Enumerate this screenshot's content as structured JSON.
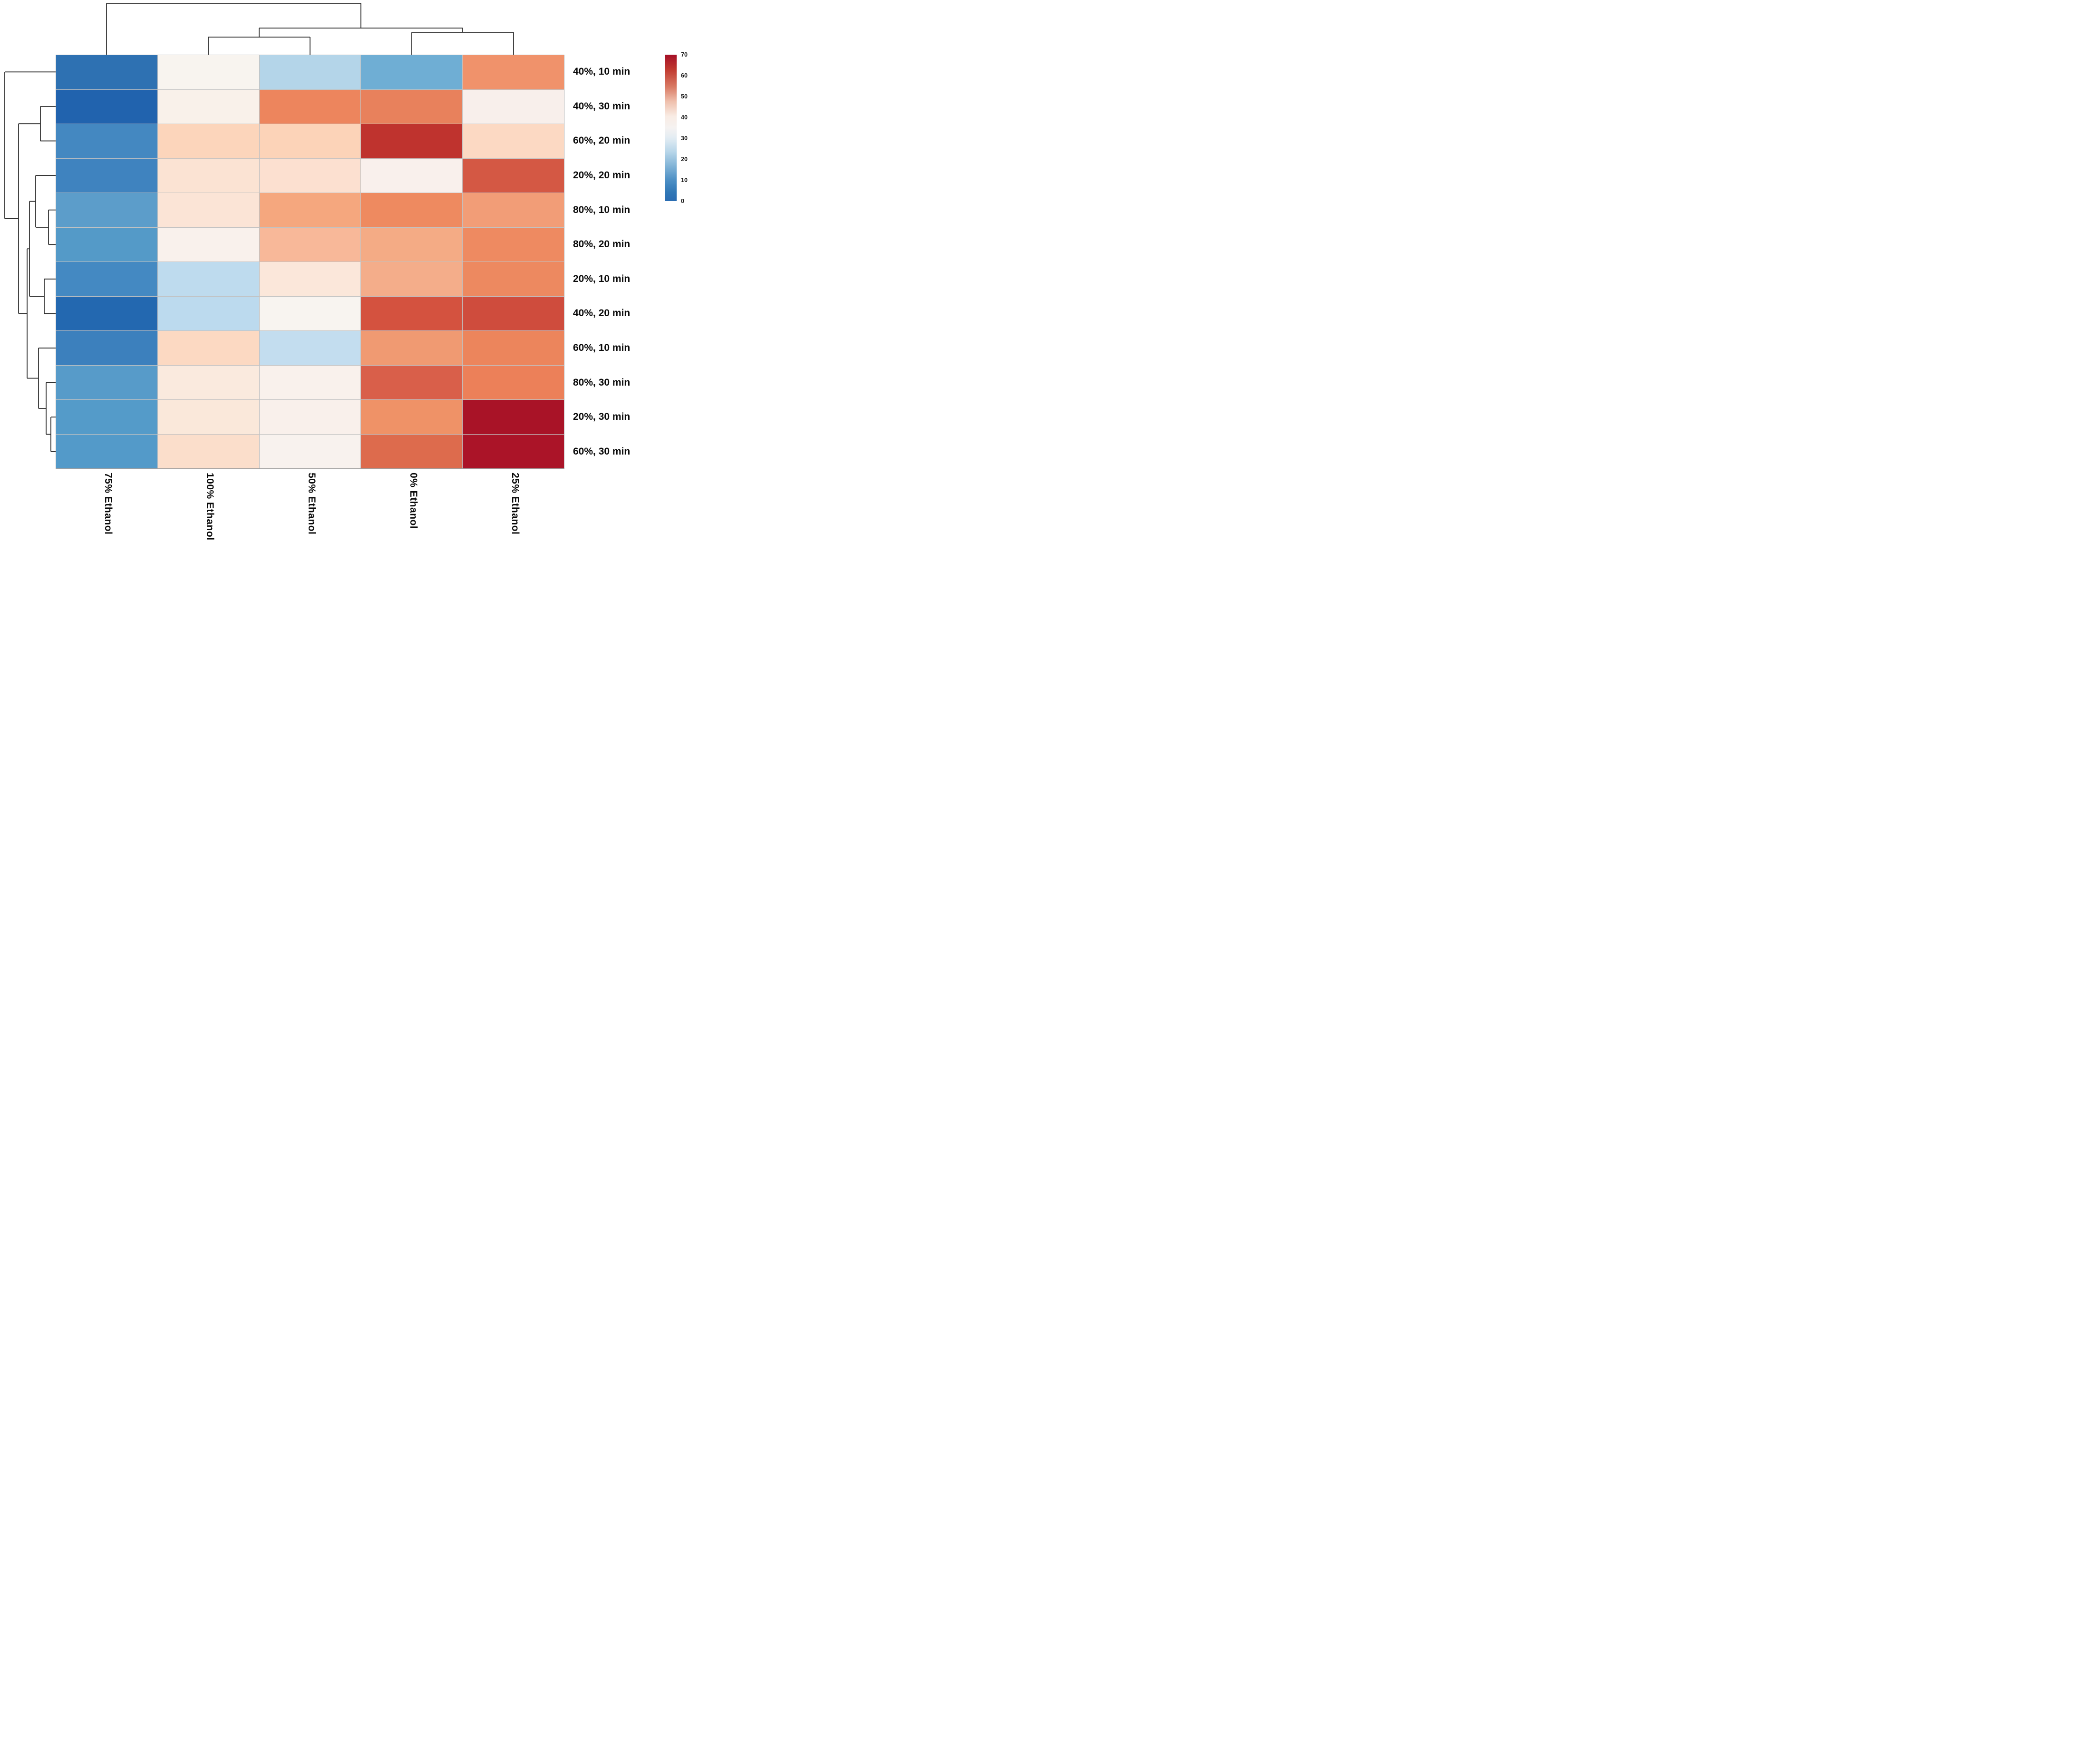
{
  "figure": {
    "kind": "clustered-heatmap",
    "background": "#ffffff",
    "dendrogram_line_color": "#2d2d2d",
    "grid_line_color": "#c2c2c2"
  },
  "chart_data": {
    "type": "heatmap",
    "title": "",
    "xlabel": "",
    "ylabel": "",
    "rows": [
      "40%, 10 min",
      "40%, 30 min",
      "60%, 20 min",
      "20%, 20 min",
      "80%, 10 min",
      "80%, 20 min",
      "20%, 10 min",
      "40%, 20 min",
      "60%, 10 min",
      "80%, 30 min",
      "20%, 30 min",
      "60%, 30 min"
    ],
    "columns": [
      "75% Ethanol",
      "100% Ethanol",
      "50% Ethanol",
      "0% Ethanol",
      "25% Ethanol"
    ],
    "values_estimated": [
      [
        6,
        37,
        21,
        16,
        51
      ],
      [
        3,
        38,
        54,
        54,
        38
      ],
      [
        9,
        44,
        44,
        64,
        43
      ],
      [
        8,
        42,
        42,
        38,
        59
      ],
      [
        13,
        42,
        48,
        53,
        50
      ],
      [
        12,
        38,
        46,
        48,
        53
      ],
      [
        9,
        22,
        41,
        48,
        53
      ],
      [
        4,
        22,
        37,
        60,
        61
      ],
      [
        8,
        43,
        23,
        50,
        54
      ],
      [
        12,
        40,
        38,
        58,
        55
      ],
      [
        12,
        40,
        38,
        51,
        69
      ],
      [
        12,
        42,
        37,
        56,
        69
      ]
    ],
    "cell_colors": [
      [
        "#2e71b2",
        "#f8f4ef",
        "#b4d5e9",
        "#6faed4",
        "#f0926b"
      ],
      [
        "#2163ae",
        "#f9f1ea",
        "#ed855d",
        "#e8815c",
        "#f8efeb"
      ],
      [
        "#4488c1",
        "#fcd5bb",
        "#fcd3b8",
        "#bf332e",
        "#fcd9c3"
      ],
      [
        "#3f83bf",
        "#fbe3d3",
        "#fce0d0",
        "#f9f0ec",
        "#d45844"
      ],
      [
        "#5c9dca",
        "#fbe4d6",
        "#f5a77e",
        "#ee8a60",
        "#f29d77"
      ],
      [
        "#549ac8",
        "#f9f1ec",
        "#f8b899",
        "#f4ab85",
        "#ee8a61"
      ],
      [
        "#4489c2",
        "#bedbee",
        "#fbe7da",
        "#f4ad8a",
        "#ed8960"
      ],
      [
        "#2368b0",
        "#bcdaee",
        "#f8f4f0",
        "#d4523f",
        "#cf4c3d"
      ],
      [
        "#3c80bd",
        "#fcd9c2",
        "#c3ddef",
        "#f09a72",
        "#ec855c"
      ],
      [
        "#579bc9",
        "#faeade",
        "#f9f1ec",
        "#d95f4a",
        "#ec8059"
      ],
      [
        "#549bc9",
        "#fae8da",
        "#f9f0eb",
        "#ef9267",
        "#a91327"
      ],
      [
        "#539ac9",
        "#fbdecb",
        "#f8f2ee",
        "#dd6b4d",
        "#ab1428"
      ]
    ],
    "colorbar": {
      "min": 0,
      "max": 70,
      "ticks": [
        "70",
        "60",
        "50",
        "40",
        "30",
        "20",
        "10",
        "0"
      ],
      "gradient_top_to_bottom": [
        {
          "pos": 0,
          "color": "#a50f27"
        },
        {
          "pos": 10,
          "color": "#c0392f"
        },
        {
          "pos": 22,
          "color": "#d97a64"
        },
        {
          "pos": 32,
          "color": "#efc0ad"
        },
        {
          "pos": 42,
          "color": "#f9ece4"
        },
        {
          "pos": 50,
          "color": "#f5f2f1"
        },
        {
          "pos": 57,
          "color": "#e2ecf3"
        },
        {
          "pos": 66,
          "color": "#b9d7ea"
        },
        {
          "pos": 76,
          "color": "#82b4d7"
        },
        {
          "pos": 86,
          "color": "#4b8ec4"
        },
        {
          "pos": 94,
          "color": "#3077b6"
        },
        {
          "pos": 100,
          "color": "#2a6cb2"
        }
      ]
    },
    "row_dendrogram": {
      "depth": 107,
      "children": [
        0,
        {
          "depth": 78,
          "children": [
            {
              "depth": 32,
              "children": [
                1,
                2
              ]
            },
            {
              "depth": 60,
              "children": [
                {
                  "depth": 55,
                  "children": [
                    {
                      "depth": 42,
                      "children": [
                        3,
                        {
                          "depth": 15,
                          "children": [
                            4,
                            5
                          ]
                        }
                      ]
                    },
                    {
                      "depth": 24,
                      "children": [
                        6,
                        7
                      ]
                    }
                  ]
                },
                {
                  "depth": 36,
                  "children": [
                    8,
                    {
                      "depth": 20,
                      "children": [
                        9,
                        {
                          "depth": 10,
                          "children": [
                            10,
                            11
                          ]
                        }
                      ]
                    }
                  ]
                }
              ]
            }
          ]
        }
      ]
    },
    "col_dendrogram": {
      "depth": 108,
      "children": [
        0,
        {
          "depth": 56,
          "children": [
            {
              "depth": 37,
              "children": [
                1,
                2
              ]
            },
            {
              "depth": 47,
              "children": [
                3,
                4
              ]
            }
          ]
        }
      ]
    }
  }
}
